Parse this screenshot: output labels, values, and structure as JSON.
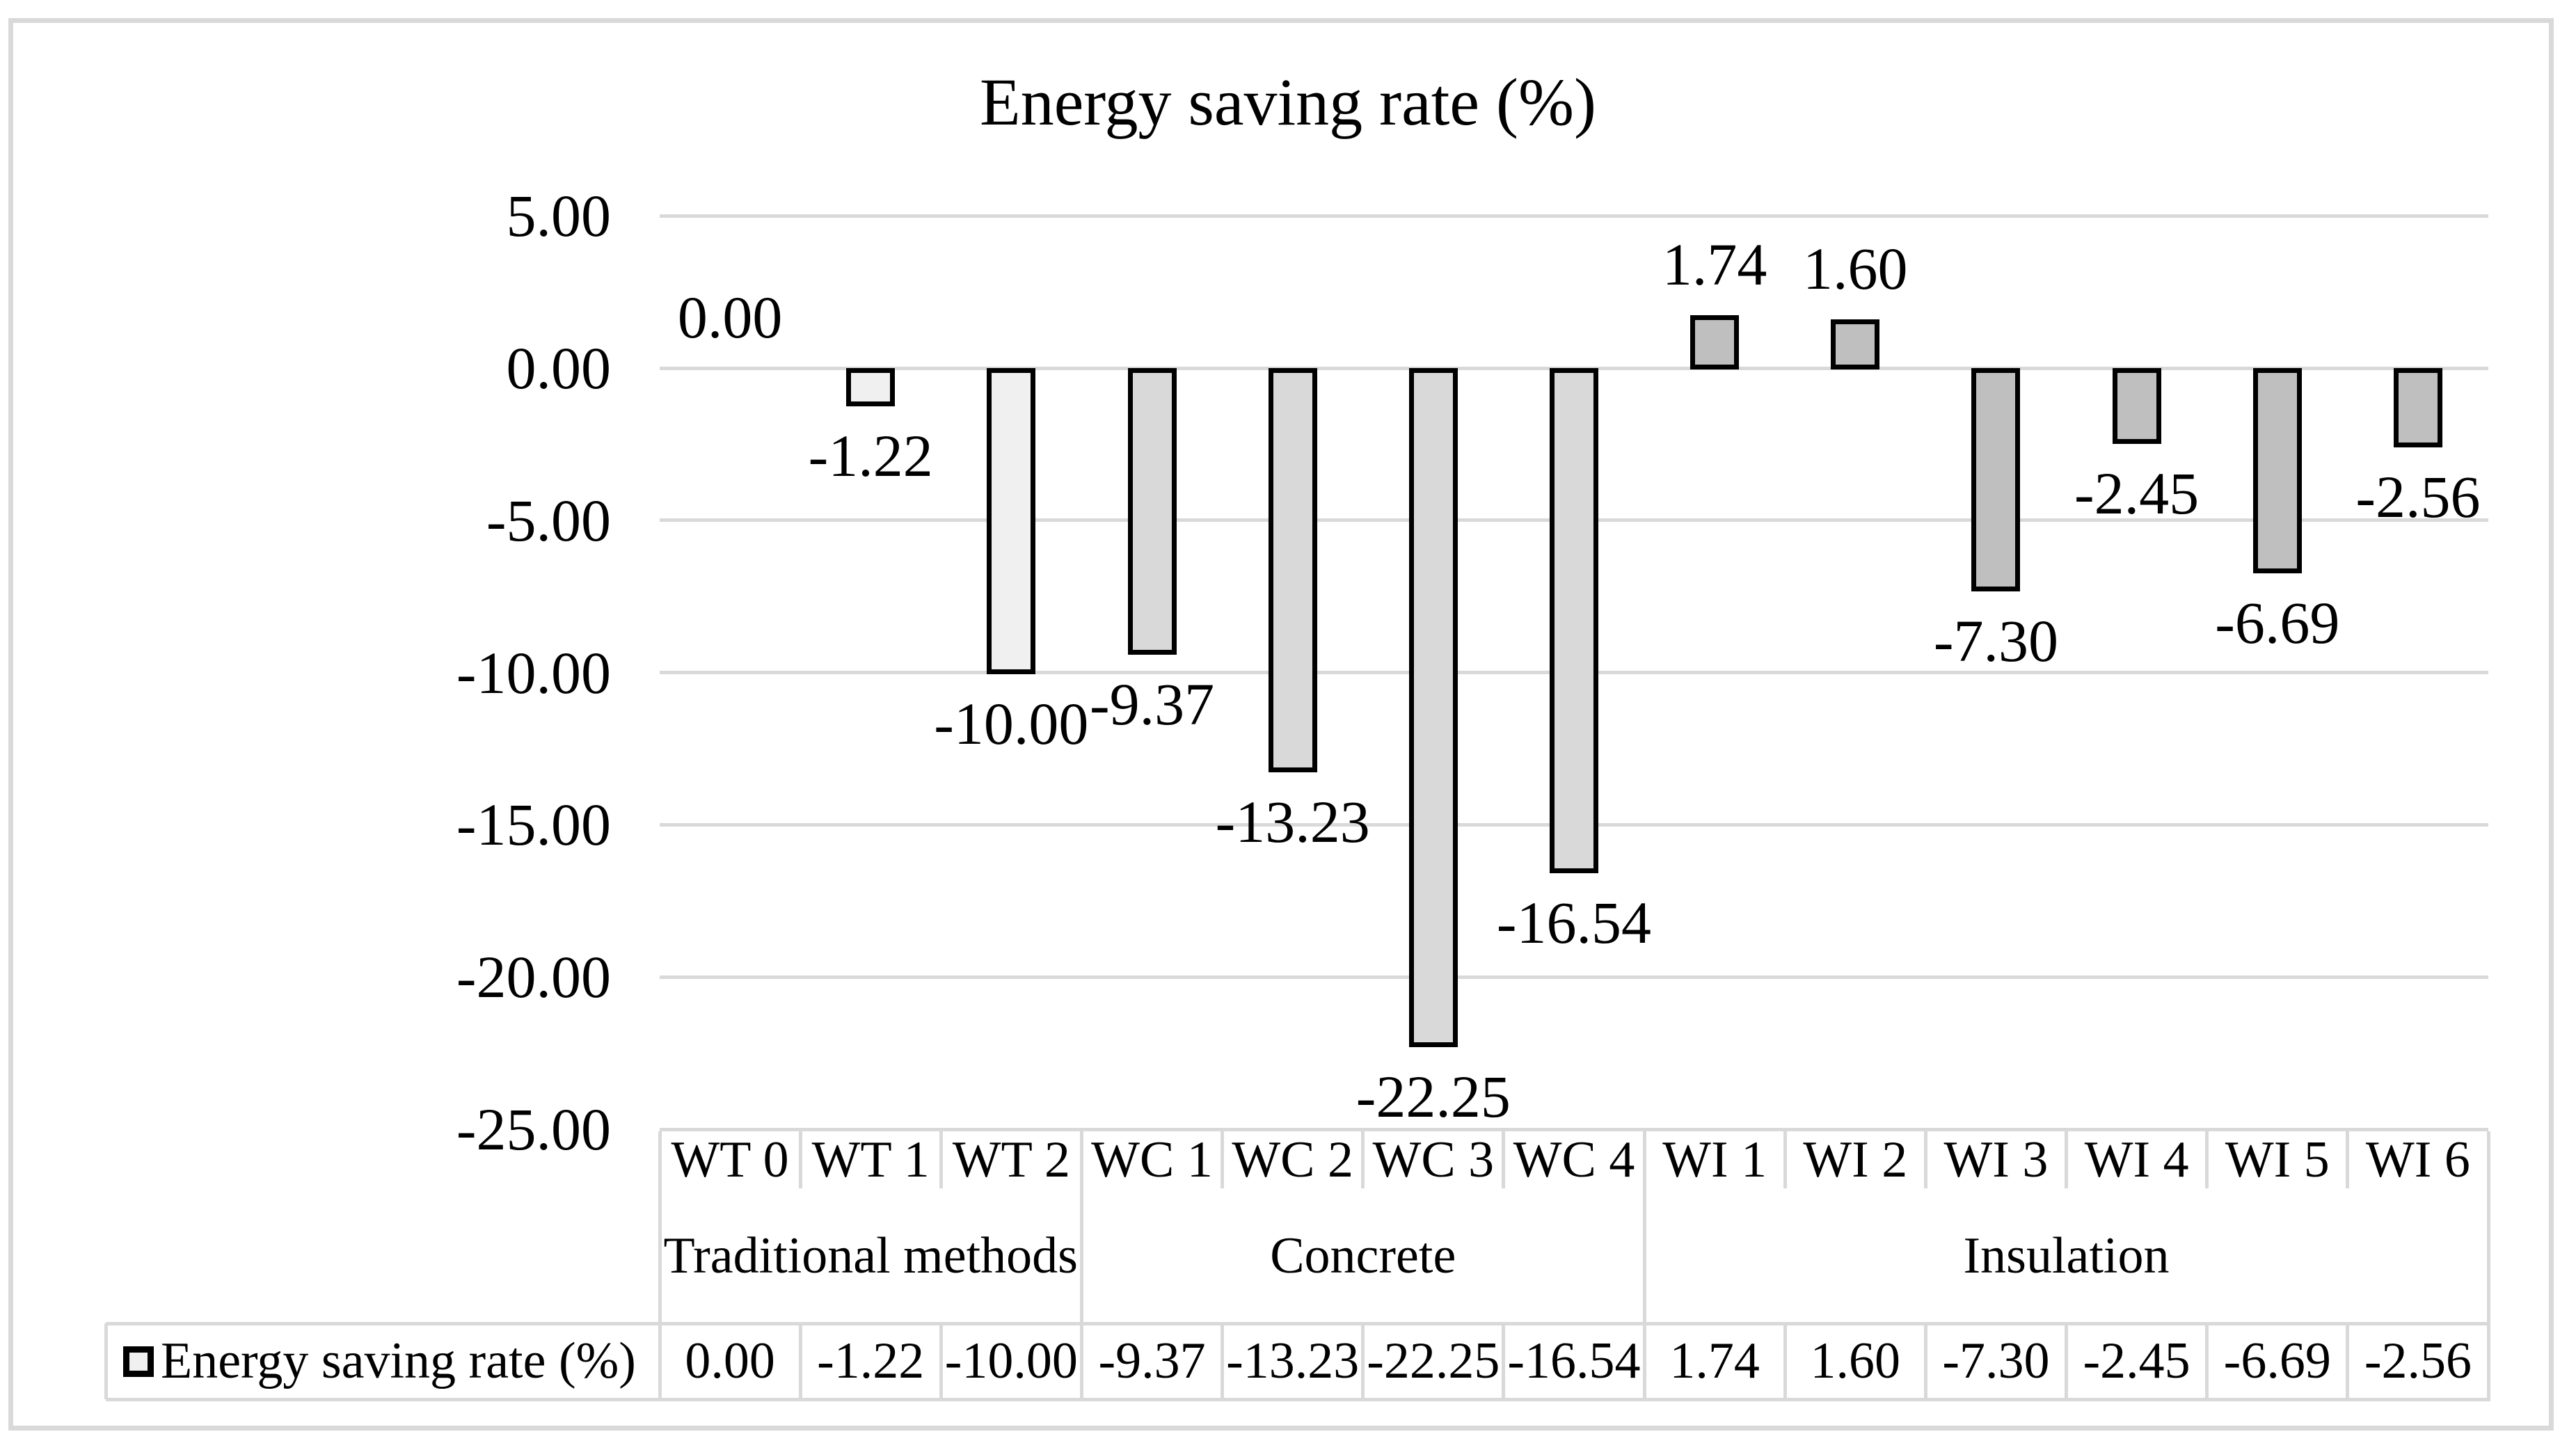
{
  "title": "Energy saving rate (%)",
  "colors": {
    "background": "#ffffff",
    "text": "#000000",
    "frame_border": "#d9d9d9",
    "grid_line": "#d9d9d9",
    "table_line": "#d9d9d9",
    "bar_border": "#000000",
    "group_fills": [
      "#f0f0f0",
      "#d9d9d9",
      "#bfbfbf"
    ],
    "legend_key_fill": "#f0f0f0"
  },
  "chart_data": {
    "type": "bar",
    "title": "Energy saving rate (%)",
    "xlabel": "",
    "ylabel": "",
    "ylim": [
      -25,
      5
    ],
    "grid": true,
    "legend_position": "bottom-table",
    "categories": [
      "WT 0",
      "WT 1",
      "WT 2",
      "WC 1",
      "WC 2",
      "WC 3",
      "WC 4",
      "WI 1",
      "WI 2",
      "WI 3",
      "WI 4",
      "WI 5",
      "WI 6"
    ],
    "groups": [
      {
        "label": "Traditional methods",
        "span": 3
      },
      {
        "label": "Concrete",
        "span": 4
      },
      {
        "label": "Insulation",
        "span": 6
      }
    ],
    "series": [
      {
        "name": "Energy saving rate (%)",
        "values": [
          0.0,
          -1.22,
          -10.0,
          -9.37,
          -13.23,
          -22.25,
          -16.54,
          1.74,
          1.6,
          -7.3,
          -2.45,
          -6.69,
          -2.56
        ],
        "labels": [
          "0.00",
          "-1.22",
          "-10.00",
          "-9.37",
          "-13.23",
          "-22.25",
          "-16.54",
          "1.74",
          "1.60",
          "-7.30",
          "-2.45",
          "-6.69",
          "-2.56"
        ]
      }
    ],
    "y_axis": {
      "tick_values": [
        5,
        0,
        -5,
        -10,
        -15,
        -20,
        -25
      ],
      "ticks": [
        "5.00",
        "0.00",
        "-5.00",
        "-10.00",
        "-15.00",
        "-20.00",
        "-25.00"
      ],
      "min": -25,
      "max": 5,
      "step": 5
    },
    "legend": {
      "label": "Energy saving rate (%)"
    }
  }
}
